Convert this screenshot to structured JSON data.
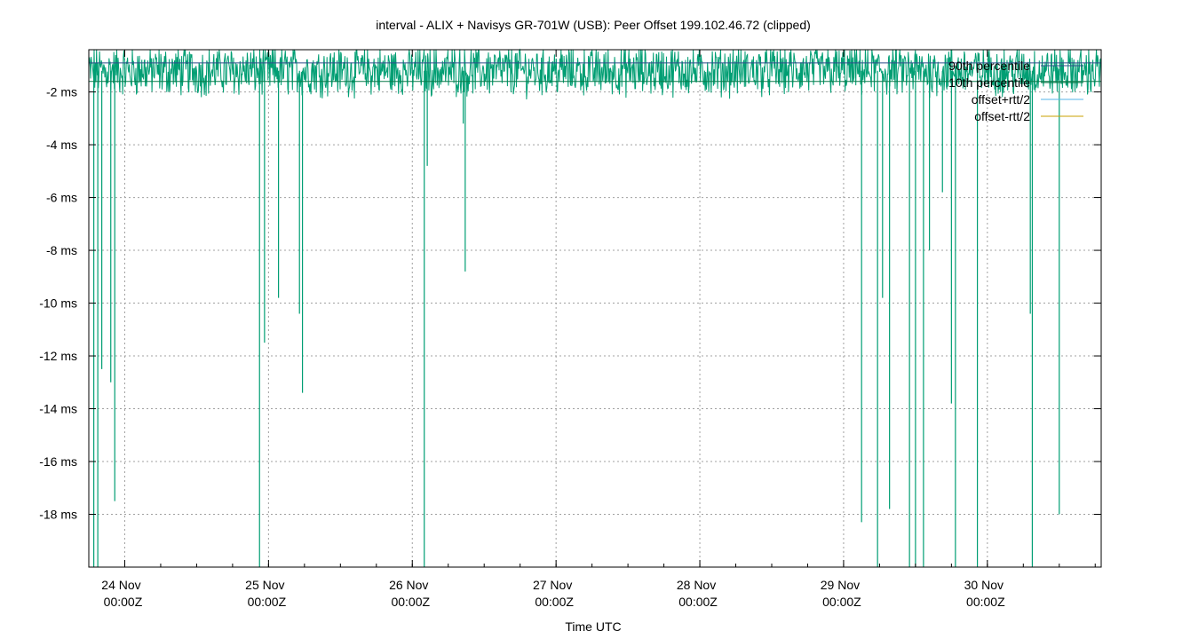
{
  "chart_data": {
    "type": "line",
    "title": "interval - ALIX + Navisys GR-701W (USB): Peer Offset 199.102.46.72 (clipped)",
    "xlabel": "Time UTC",
    "ylabel": "",
    "x_range_days": [
      "2023-11-23T18:00:00Z",
      "2023-11-30T19:00:00Z"
    ],
    "x_ticks": [
      {
        "date": "24 Nov",
        "time": "00:00Z",
        "value": "2023-11-24T00:00:00Z"
      },
      {
        "date": "25 Nov",
        "time": "00:00Z",
        "value": "2023-11-25T00:00:00Z"
      },
      {
        "date": "26 Nov",
        "time": "00:00Z",
        "value": "2023-11-26T00:00:00Z"
      },
      {
        "date": "27 Nov",
        "time": "00:00Z",
        "value": "2023-11-27T00:00:00Z"
      },
      {
        "date": "28 Nov",
        "time": "00:00Z",
        "value": "2023-11-28T00:00:00Z"
      },
      {
        "date": "29 Nov",
        "time": "00:00Z",
        "value": "2023-11-29T00:00:00Z"
      },
      {
        "date": "30 Nov",
        "time": "00:00Z",
        "value": "2023-11-30T00:00:00Z"
      }
    ],
    "y_ticks": [
      {
        "label": "-2 ms",
        "value": -2
      },
      {
        "label": "-4 ms",
        "value": -4
      },
      {
        "label": "-6 ms",
        "value": -6
      },
      {
        "label": "-8 ms",
        "value": -8
      },
      {
        "label": "-10 ms",
        "value": -10
      },
      {
        "label": "-12 ms",
        "value": -12
      },
      {
        "label": "-14 ms",
        "value": -14
      },
      {
        "label": "-16 ms",
        "value": -16
      },
      {
        "label": "-18 ms",
        "value": -18
      }
    ],
    "ylim": [
      -20,
      -0.4
    ],
    "grid": true,
    "legend_position": "top-right",
    "series": [
      {
        "name": "90th percentile",
        "color": "#2e4d8a",
        "value": -0.9
      },
      {
        "name": "10th percentile",
        "color": "#0a7a4a",
        "value": -1.6
      },
      {
        "name": "offset+rtt/2",
        "color": "#56b4e9"
      },
      {
        "name": "offset-rtt/2",
        "color": "#c8a200"
      },
      {
        "name": "offset",
        "color": "#009e73",
        "baseline": -1.2,
        "spikes": [
          {
            "x": "2023-11-23T18:50:00Z",
            "y": -20
          },
          {
            "x": "2023-11-23T19:30:00Z",
            "y": -20
          },
          {
            "x": "2023-11-23T20:10:00Z",
            "y": -12.5
          },
          {
            "x": "2023-11-23T21:40:00Z",
            "y": -13.0
          },
          {
            "x": "2023-11-23T22:20:00Z",
            "y": -17.5
          },
          {
            "x": "2023-11-24T22:30:00Z",
            "y": -20
          },
          {
            "x": "2023-11-24T23:20:00Z",
            "y": -11.5
          },
          {
            "x": "2023-11-25T01:40:00Z",
            "y": -9.8
          },
          {
            "x": "2023-11-25T05:10:00Z",
            "y": -10.4
          },
          {
            "x": "2023-11-25T05:40:00Z",
            "y": -13.4
          },
          {
            "x": "2023-11-26T02:00:00Z",
            "y": -20
          },
          {
            "x": "2023-11-26T02:30:00Z",
            "y": -4.8
          },
          {
            "x": "2023-11-26T08:30:00Z",
            "y": -3.2
          },
          {
            "x": "2023-11-26T08:50:00Z",
            "y": -8.8
          },
          {
            "x": "2023-11-29T03:00:00Z",
            "y": -18.3
          },
          {
            "x": "2023-11-29T05:40:00Z",
            "y": -20
          },
          {
            "x": "2023-11-29T06:30:00Z",
            "y": -9.8
          },
          {
            "x": "2023-11-29T07:40:00Z",
            "y": -17.8
          },
          {
            "x": "2023-11-29T11:00:00Z",
            "y": -20
          },
          {
            "x": "2023-11-29T12:00:00Z",
            "y": -20
          },
          {
            "x": "2023-11-29T13:20:00Z",
            "y": -20
          },
          {
            "x": "2023-11-29T14:20:00Z",
            "y": -8.0
          },
          {
            "x": "2023-11-29T16:30:00Z",
            "y": -5.8
          },
          {
            "x": "2023-11-29T18:00:00Z",
            "y": -13.8
          },
          {
            "x": "2023-11-29T18:40:00Z",
            "y": -20
          },
          {
            "x": "2023-11-29T22:20:00Z",
            "y": -20
          },
          {
            "x": "2023-11-30T07:10:00Z",
            "y": -10.4
          },
          {
            "x": "2023-11-30T07:30:00Z",
            "y": -20
          },
          {
            "x": "2023-11-30T12:00:00Z",
            "y": -18.0
          }
        ]
      }
    ]
  }
}
